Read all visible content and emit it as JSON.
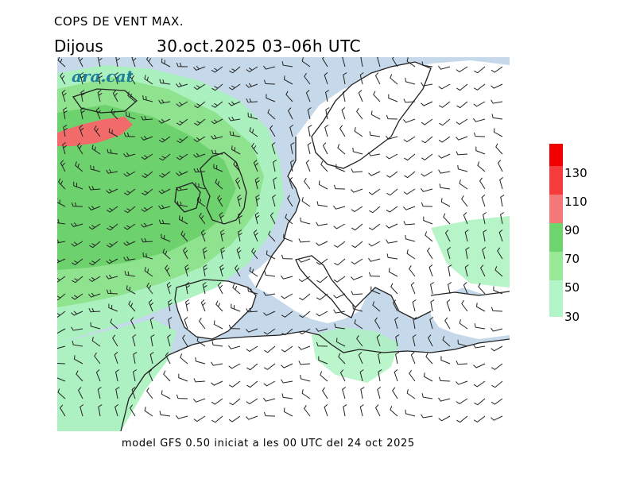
{
  "header": {
    "title": "COPS DE VENT MAX.",
    "day": "Dijous",
    "datetime": "30.oct.2025  03–06h  UTC"
  },
  "watermark": "ara.cat",
  "footer": "model GFS 0.50 iniciat a les 00 UTC del 24 oct 2025",
  "legend": {
    "labels": [
      "130",
      "110",
      "90",
      "70",
      "50",
      "30"
    ],
    "colors": [
      "#f20000",
      "#f53b3b",
      "#f57878",
      "#6ed46e",
      "#98e898",
      "#b2f5c8"
    ]
  },
  "map": {
    "colors": {
      "sea": "#c6d9ea",
      "land": "#ffffff",
      "band_30_50": "#aaf2be",
      "band_50_70": "#8fe38f",
      "band_70_90": "#6dd26d",
      "band_90_110": "#f26b6b",
      "coast": "#222222"
    }
  }
}
